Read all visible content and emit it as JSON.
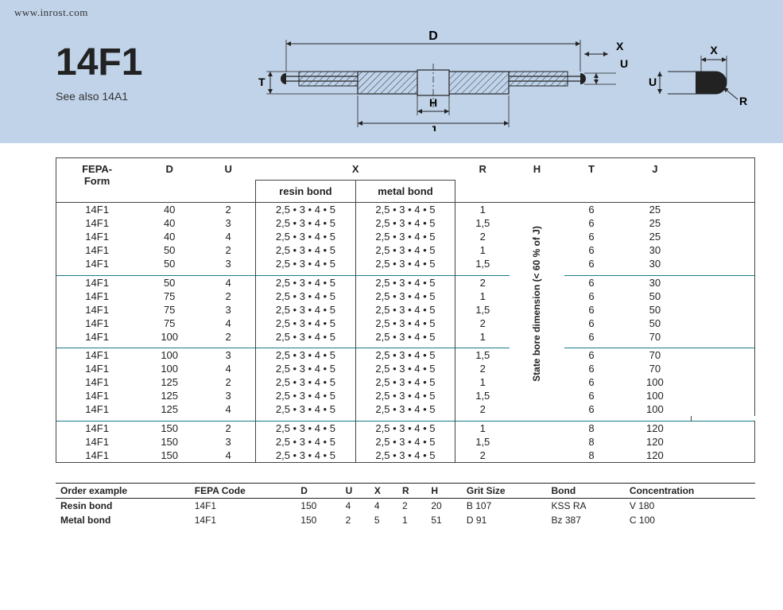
{
  "url": "www.inrost.com",
  "title": "14F1",
  "subtitle": "See also 14A1",
  "dim_labels": {
    "D": "D",
    "X": "X",
    "U": "U",
    "T": "T",
    "H": "H",
    "J": "J",
    "R": "R"
  },
  "headers": {
    "fepa": "FEPA-\nForm",
    "D": "D",
    "U": "U",
    "X": "X",
    "R": "R",
    "H": "H",
    "T": "T",
    "J": "J",
    "resin": "resin bond",
    "metal": "metal bond",
    "h_note": "State bore dimension (< 60 % of J)"
  },
  "x_val": "2,5 • 3 • 4 • 5",
  "groups": [
    [
      {
        "form": "14F1",
        "D": "40",
        "U": "2",
        "R": "1",
        "T": "6",
        "J": "25"
      },
      {
        "form": "14F1",
        "D": "40",
        "U": "3",
        "R": "1,5",
        "T": "6",
        "J": "25"
      },
      {
        "form": "14F1",
        "D": "40",
        "U": "4",
        "R": "2",
        "T": "6",
        "J": "25"
      },
      {
        "form": "14F1",
        "D": "50",
        "U": "2",
        "R": "1",
        "T": "6",
        "J": "30"
      },
      {
        "form": "14F1",
        "D": "50",
        "U": "3",
        "R": "1,5",
        "T": "6",
        "J": "30"
      }
    ],
    [
      {
        "form": "14F1",
        "D": "50",
        "U": "4",
        "R": "2",
        "T": "6",
        "J": "30"
      },
      {
        "form": "14F1",
        "D": "75",
        "U": "2",
        "R": "1",
        "T": "6",
        "J": "50"
      },
      {
        "form": "14F1",
        "D": "75",
        "U": "3",
        "R": "1,5",
        "T": "6",
        "J": "50"
      },
      {
        "form": "14F1",
        "D": "75",
        "U": "4",
        "R": "2",
        "T": "6",
        "J": "50"
      },
      {
        "form": "14F1",
        "D": "100",
        "U": "2",
        "R": "1",
        "T": "6",
        "J": "70"
      }
    ],
    [
      {
        "form": "14F1",
        "D": "100",
        "U": "3",
        "R": "1,5",
        "T": "6",
        "J": "70"
      },
      {
        "form": "14F1",
        "D": "100",
        "U": "4",
        "R": "2",
        "T": "6",
        "J": "70"
      },
      {
        "form": "14F1",
        "D": "125",
        "U": "2",
        "R": "1",
        "T": "6",
        "J": "100"
      },
      {
        "form": "14F1",
        "D": "125",
        "U": "3",
        "R": "1,5",
        "T": "6",
        "J": "100"
      },
      {
        "form": "14F1",
        "D": "125",
        "U": "4",
        "R": "2",
        "T": "6",
        "J": "100"
      }
    ],
    [
      {
        "form": "14F1",
        "D": "150",
        "U": "2",
        "R": "1",
        "T": "8",
        "J": "120"
      },
      {
        "form": "14F1",
        "D": "150",
        "U": "3",
        "R": "1,5",
        "T": "8",
        "J": "120"
      },
      {
        "form": "14F1",
        "D": "150",
        "U": "4",
        "R": "2",
        "T": "8",
        "J": "120"
      }
    ]
  ],
  "order": {
    "cols": [
      "Order example",
      "FEPA Code",
      "D",
      "U",
      "X",
      "R",
      "H",
      "Grit Size",
      "Bond",
      "Concentration"
    ],
    "rows": [
      [
        "Resin bond",
        "14F1",
        "150",
        "4",
        "4",
        "2",
        "20",
        "B 107",
        "KSS RA",
        "V 180"
      ],
      [
        "Metal bond",
        "14F1",
        "150",
        "2",
        "5",
        "1",
        "51",
        "D 91",
        "Bz 387",
        "C 100"
      ]
    ]
  }
}
